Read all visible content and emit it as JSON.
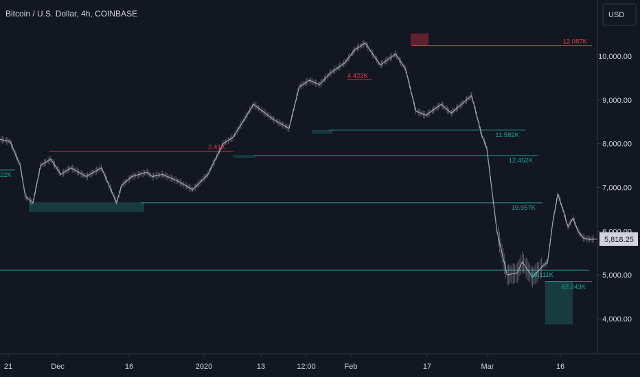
{
  "chart_data": {
    "type": "candlestick",
    "title": "Bitcoin / U.S. Dollar, 4h, COINBASE",
    "currency_button": "USD",
    "ylim": [
      3600,
      10850
    ],
    "y_ticks": [
      4000,
      5000,
      6000,
      7000,
      8000,
      9000,
      10000
    ],
    "y_tick_labels": [
      "4,000.00",
      "5,000.00",
      "6,000.00",
      "7,000.00",
      "8,000.00",
      "9,000.00",
      "10,000.00"
    ],
    "x_tick_labels": [
      "21",
      "Dec",
      "16",
      "2020",
      "13",
      "12:00",
      "Feb",
      "17",
      "Mar",
      "16"
    ],
    "last_price": 5818.25,
    "last_price_label": "5,818.25",
    "price_path": {
      "x_index": [
        0,
        4,
        8,
        10,
        13,
        16,
        20,
        24,
        28,
        34,
        40,
        46,
        48,
        52,
        58,
        60,
        64,
        70,
        76,
        82,
        88,
        92,
        100,
        108,
        114,
        118,
        122,
        126,
        130,
        136,
        140,
        144,
        150,
        156,
        160,
        164,
        168,
        174,
        178,
        182,
        186,
        190,
        192,
        196,
        200,
        204,
        206,
        210,
        214,
        216,
        218,
        220,
        222,
        224,
        226,
        228,
        230,
        232,
        234
      ],
      "close": [
        8100,
        8050,
        7500,
        6800,
        6650,
        7500,
        7650,
        7300,
        7450,
        7250,
        7450,
        6650,
        7050,
        7250,
        7350,
        7250,
        7300,
        7150,
        6950,
        7300,
        8000,
        8150,
        8900,
        8550,
        8350,
        9300,
        9450,
        9350,
        9600,
        9850,
        10150,
        10300,
        9800,
        10050,
        9700,
        8750,
        8650,
        8900,
        8700,
        8900,
        9100,
        8200,
        7900,
        6000,
        5000,
        5050,
        5300,
        4950,
        5200,
        5300,
        6200,
        6850,
        6500,
        6100,
        6300,
        6000,
        5850,
        5818,
        5818
      ]
    },
    "levels": [
      {
        "kind": "resistance",
        "label": "12.087K",
        "price": 10240
      },
      {
        "kind": "resistance",
        "label": "4.422K",
        "price": 9460
      },
      {
        "kind": "resistance",
        "label": "2.41K",
        "price": 7830
      },
      {
        "kind": "support",
        "label": "11.582K",
        "price": 8310
      },
      {
        "kind": "support",
        "label": "12.452K",
        "price": 7730
      },
      {
        "kind": "support",
        "label": "19.957K",
        "price": 6650
      },
      {
        "kind": "support",
        "label": "69.111K",
        "price": 5110
      },
      {
        "kind": "support",
        "label": "62.243K",
        "price": 4850
      },
      {
        "kind": "support",
        "label": "22K",
        "price": 7400
      }
    ],
    "zones": [
      {
        "kind": "support",
        "from": 6440,
        "to": 6660
      },
      {
        "kind": "support",
        "from": 7680,
        "to": 7740
      },
      {
        "kind": "support",
        "from": 8230,
        "to": 8320
      },
      {
        "kind": "support",
        "from": 3870,
        "to": 4860
      },
      {
        "kind": "resistance",
        "from": 10240,
        "to": 10520
      }
    ],
    "grid": false,
    "legend": "none"
  },
  "colors": {
    "background": "#131722",
    "text": "#d1d4dc",
    "resistance": "#f23645",
    "support": "#26a69a",
    "price_line": "#b2b5be",
    "axis_line": "#363a45"
  }
}
